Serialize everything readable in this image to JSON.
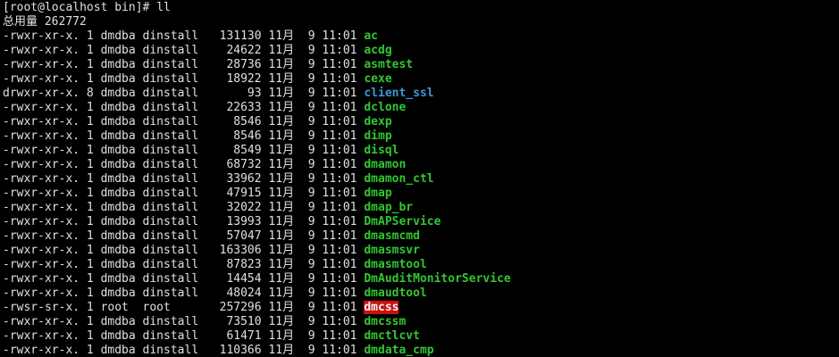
{
  "terminal": {
    "prompt": "[root@localhost bin]#",
    "command": "ll",
    "total_label": "总用量",
    "total_value": "262772"
  },
  "colors": {
    "background": "#000000",
    "foreground": "#e0e0e0",
    "exec": "#32c632",
    "dir": "#3e97d4",
    "setuid_fg": "#f2f2f2",
    "setuid_bg": "#cc1010"
  },
  "listing": {
    "rows": [
      {
        "perms": "-rwxr-xr-x.",
        "links": "1",
        "owner": "dmdba",
        "group": "dinstall",
        "size": "131130",
        "month": "11月",
        "day": "9",
        "time": "11:01",
        "name": "ac",
        "type": "exec"
      },
      {
        "perms": "-rwxr-xr-x.",
        "links": "1",
        "owner": "dmdba",
        "group": "dinstall",
        "size": "24622",
        "month": "11月",
        "day": "9",
        "time": "11:01",
        "name": "acdg",
        "type": "exec"
      },
      {
        "perms": "-rwxr-xr-x.",
        "links": "1",
        "owner": "dmdba",
        "group": "dinstall",
        "size": "28736",
        "month": "11月",
        "day": "9",
        "time": "11:01",
        "name": "asmtest",
        "type": "exec"
      },
      {
        "perms": "-rwxr-xr-x.",
        "links": "1",
        "owner": "dmdba",
        "group": "dinstall",
        "size": "18922",
        "month": "11月",
        "day": "9",
        "time": "11:01",
        "name": "cexe",
        "type": "exec"
      },
      {
        "perms": "drwxr-xr-x.",
        "links": "8",
        "owner": "dmdba",
        "group": "dinstall",
        "size": "93",
        "month": "11月",
        "day": "9",
        "time": "11:01",
        "name": "client_ssl",
        "type": "dir"
      },
      {
        "perms": "-rwxr-xr-x.",
        "links": "1",
        "owner": "dmdba",
        "group": "dinstall",
        "size": "22633",
        "month": "11月",
        "day": "9",
        "time": "11:01",
        "name": "dclone",
        "type": "exec"
      },
      {
        "perms": "-rwxr-xr-x.",
        "links": "1",
        "owner": "dmdba",
        "group": "dinstall",
        "size": "8546",
        "month": "11月",
        "day": "9",
        "time": "11:01",
        "name": "dexp",
        "type": "exec"
      },
      {
        "perms": "-rwxr-xr-x.",
        "links": "1",
        "owner": "dmdba",
        "group": "dinstall",
        "size": "8546",
        "month": "11月",
        "day": "9",
        "time": "11:01",
        "name": "dimp",
        "type": "exec"
      },
      {
        "perms": "-rwxr-xr-x.",
        "links": "1",
        "owner": "dmdba",
        "group": "dinstall",
        "size": "8549",
        "month": "11月",
        "day": "9",
        "time": "11:01",
        "name": "disql",
        "type": "exec"
      },
      {
        "perms": "-rwxr-xr-x.",
        "links": "1",
        "owner": "dmdba",
        "group": "dinstall",
        "size": "68732",
        "month": "11月",
        "day": "9",
        "time": "11:01",
        "name": "dmamon",
        "type": "exec"
      },
      {
        "perms": "-rwxr-xr-x.",
        "links": "1",
        "owner": "dmdba",
        "group": "dinstall",
        "size": "33962",
        "month": "11月",
        "day": "9",
        "time": "11:01",
        "name": "dmamon_ctl",
        "type": "exec"
      },
      {
        "perms": "-rwxr-xr-x.",
        "links": "1",
        "owner": "dmdba",
        "group": "dinstall",
        "size": "47915",
        "month": "11月",
        "day": "9",
        "time": "11:01",
        "name": "dmap",
        "type": "exec"
      },
      {
        "perms": "-rwxr-xr-x.",
        "links": "1",
        "owner": "dmdba",
        "group": "dinstall",
        "size": "32022",
        "month": "11月",
        "day": "9",
        "time": "11:01",
        "name": "dmap_br",
        "type": "exec"
      },
      {
        "perms": "-rwxr-xr-x.",
        "links": "1",
        "owner": "dmdba",
        "group": "dinstall",
        "size": "13993",
        "month": "11月",
        "day": "9",
        "time": "11:01",
        "name": "DmAPService",
        "type": "exec"
      },
      {
        "perms": "-rwxr-xr-x.",
        "links": "1",
        "owner": "dmdba",
        "group": "dinstall",
        "size": "57047",
        "month": "11月",
        "day": "9",
        "time": "11:01",
        "name": "dmasmcmd",
        "type": "exec"
      },
      {
        "perms": "-rwxr-xr-x.",
        "links": "1",
        "owner": "dmdba",
        "group": "dinstall",
        "size": "163306",
        "month": "11月",
        "day": "9",
        "time": "11:01",
        "name": "dmasmsvr",
        "type": "exec"
      },
      {
        "perms": "-rwxr-xr-x.",
        "links": "1",
        "owner": "dmdba",
        "group": "dinstall",
        "size": "87823",
        "month": "11月",
        "day": "9",
        "time": "11:01",
        "name": "dmasmtool",
        "type": "exec"
      },
      {
        "perms": "-rwxr-xr-x.",
        "links": "1",
        "owner": "dmdba",
        "group": "dinstall",
        "size": "14454",
        "month": "11月",
        "day": "9",
        "time": "11:01",
        "name": "DmAuditMonitorService",
        "type": "exec"
      },
      {
        "perms": "-rwxr-xr-x.",
        "links": "1",
        "owner": "dmdba",
        "group": "dinstall",
        "size": "48024",
        "month": "11月",
        "day": "9",
        "time": "11:01",
        "name": "dmaudtool",
        "type": "exec"
      },
      {
        "perms": "-rwsr-sr-x.",
        "links": "1",
        "owner": "root",
        "group": "root",
        "size": "257296",
        "month": "11月",
        "day": "9",
        "time": "11:01",
        "name": "dmcss",
        "type": "setuid"
      },
      {
        "perms": "-rwxr-xr-x.",
        "links": "1",
        "owner": "dmdba",
        "group": "dinstall",
        "size": "73510",
        "month": "11月",
        "day": "9",
        "time": "11:01",
        "name": "dmcssm",
        "type": "exec"
      },
      {
        "perms": "-rwxr-xr-x.",
        "links": "1",
        "owner": "dmdba",
        "group": "dinstall",
        "size": "61471",
        "month": "11月",
        "day": "9",
        "time": "11:01",
        "name": "dmctlcvt",
        "type": "exec"
      },
      {
        "perms": "-rwxr-xr-x.",
        "links": "1",
        "owner": "dmdba",
        "group": "dinstall",
        "size": "110366",
        "month": "11月",
        "day": "9",
        "time": "11:01",
        "name": "dmdata_cmp",
        "type": "exec"
      }
    ]
  }
}
